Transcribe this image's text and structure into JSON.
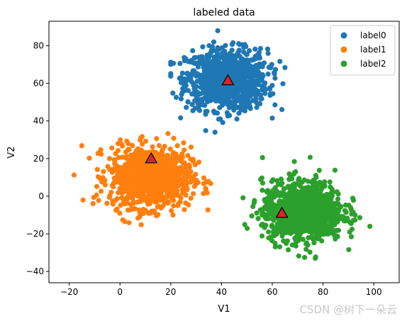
{
  "chart_data": {
    "type": "scatter",
    "title": "labeled data",
    "xlabel": "V1",
    "ylabel": "V2",
    "xlim": [
      -28,
      110
    ],
    "ylim": [
      -46,
      93
    ],
    "xticks": [
      -20,
      0,
      20,
      40,
      60,
      80,
      100
    ],
    "yticks": [
      -40,
      -20,
      0,
      20,
      40,
      60,
      80
    ],
    "grid": false,
    "legend_position": "top-right",
    "series": [
      {
        "name": "label0",
        "color": "#1f77b4",
        "center": [
          42,
          62
        ],
        "spread": [
          8,
          8
        ],
        "count": 1000,
        "x_range": [
          20,
          65
        ],
        "y_range": [
          34,
          88
        ]
      },
      {
        "name": "label1",
        "color": "#ff7f0e",
        "center": [
          12,
          10
        ],
        "spread": [
          8,
          8
        ],
        "count": 1000,
        "x_range": [
          -22,
          42
        ],
        "y_range": [
          -21,
          45
        ]
      },
      {
        "name": "label2",
        "color": "#2ca02c",
        "center": [
          72,
          -8
        ],
        "spread": [
          8,
          8
        ],
        "count": 1000,
        "x_range": [
          28,
          104
        ],
        "y_range": [
          -39,
          26
        ]
      }
    ],
    "centroids": {
      "marker": "triangle",
      "color": "#d62728",
      "points": [
        {
          "x": 42.5,
          "y": 61.5
        },
        {
          "x": 12.3,
          "y": 20.0
        },
        {
          "x": 63.8,
          "y": -9.0
        }
      ]
    }
  },
  "watermark": "CSDN @树下一朵云"
}
